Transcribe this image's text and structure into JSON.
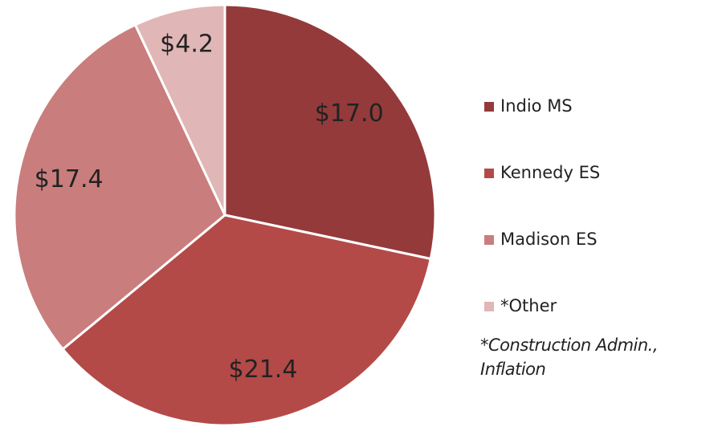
{
  "chart_data": {
    "type": "pie",
    "categories": [
      "Indio MS",
      "Kennedy ES",
      "Madison ES",
      "*Other"
    ],
    "values": [
      17.0,
      21.4,
      17.4,
      4.2
    ],
    "value_labels": [
      "$17.0",
      "$21.4",
      "$17.4",
      "$4.2"
    ],
    "colors": [
      "#943a3a",
      "#b34a48",
      "#c97d7c",
      "#e0b6b6"
    ],
    "legend": "right",
    "note": "*Construction Admin., Inflation"
  }
}
